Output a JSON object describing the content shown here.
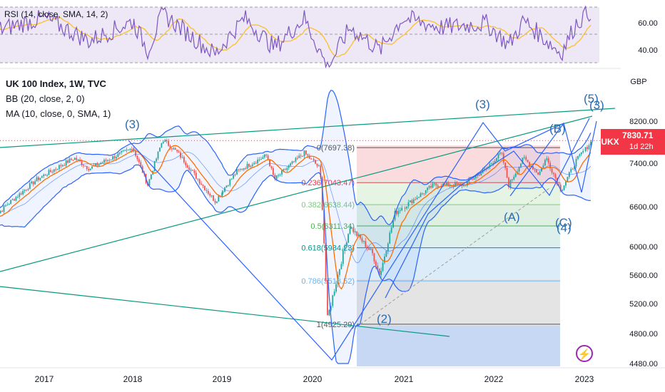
{
  "rsi_pane": {
    "legend": "RSI (14, close, SMA, 14, 2)",
    "levels": [
      "60.00",
      "40.00"
    ]
  },
  "price_pane": {
    "title": "UK 100 Index, 1W, TVC",
    "bb_label": "BB (20, close, 2, 0)",
    "ma_label": "MA (10, close, 0, SMA, 1)",
    "currency": "GBP",
    "y_ticks": [
      "8200.00",
      "7400.00",
      "6600.00",
      "6000.00",
      "5600.00",
      "5200.00",
      "4800.00",
      "4480.00"
    ],
    "x_ticks": [
      "2017",
      "2018",
      "2019",
      "2020",
      "2021",
      "2022",
      "2023"
    ],
    "last_price_badge": {
      "symbol": "UKX",
      "price": "7830.71",
      "time": "1d 22h"
    }
  },
  "fib": {
    "levels": [
      {
        "label": "0(7697.38)",
        "value": 7697.38,
        "color": "#555555"
      },
      {
        "label": "0.236(7043.47)",
        "value": 7043.47,
        "color": "#f23645"
      },
      {
        "label": "0.382(6638.44)",
        "value": 6638.44,
        "color": "#81c784"
      },
      {
        "label": "0.5(6311.34)",
        "value": 6311.34,
        "color": "#4caf50"
      },
      {
        "label": "0.618(5984.23)",
        "value": 5984.23,
        "color": "#009688"
      },
      {
        "label": "0.786(5518.52)",
        "value": 5518.52,
        "color": "#64b5f6"
      },
      {
        "label": "1(4925.29)",
        "value": 4925.29,
        "color": "#555555"
      }
    ]
  },
  "wave_labels": [
    "(3)",
    "(3)",
    "(5)",
    "(3)",
    "(B)",
    "(A)",
    "(C)",
    "(4)",
    "(2)"
  ],
  "colors": {
    "up": "#26a69a",
    "down": "#ef5350",
    "bb": "#2962ff",
    "ma": "#ff6d00",
    "rsi": "#7e57c2",
    "rsi_ma": "#fbc02d",
    "trend_green": "#089981",
    "trend_blue": "#2962ff",
    "wave": "#2b6cb0"
  },
  "chart_data": {
    "type": "candlestick",
    "symbol": "UK 100 Index",
    "interval": "1W",
    "x_range": [
      "2016-06",
      "2023-04"
    ],
    "y_range": [
      4480,
      8500
    ],
    "last_close": 7830.71,
    "swings": [
      {
        "date": "2016-06",
        "price": 6400
      },
      {
        "date": "2016-12",
        "price": 7100
      },
      {
        "date": "2017-05",
        "price": 7500
      },
      {
        "date": "2017-07",
        "price": 7300
      },
      {
        "date": "2018-01",
        "price": 7700
      },
      {
        "date": "2018-03",
        "price": 7000
      },
      {
        "date": "2018-05",
        "price": 7850
      },
      {
        "date": "2018-07",
        "price": 7600
      },
      {
        "date": "2018-10",
        "price": 7050
      },
      {
        "date": "2018-12",
        "price": 6700
      },
      {
        "date": "2019-03",
        "price": 7250
      },
      {
        "date": "2019-07",
        "price": 7550
      },
      {
        "date": "2019-08",
        "price": 7100
      },
      {
        "date": "2019-12",
        "price": 7600
      },
      {
        "date": "2020-02",
        "price": 7300
      },
      {
        "date": "2020-03",
        "price": 5000
      },
      {
        "date": "2020-06",
        "price": 6300
      },
      {
        "date": "2020-09",
        "price": 5900
      },
      {
        "date": "2020-10",
        "price": 5600
      },
      {
        "date": "2020-12",
        "price": 6500
      },
      {
        "date": "2021-05",
        "price": 7000
      },
      {
        "date": "2021-09",
        "price": 7000
      },
      {
        "date": "2021-12",
        "price": 7300
      },
      {
        "date": "2022-02",
        "price": 7600
      },
      {
        "date": "2022-03",
        "price": 7000
      },
      {
        "date": "2022-05",
        "price": 7500
      },
      {
        "date": "2022-07",
        "price": 7200
      },
      {
        "date": "2022-08",
        "price": 7500
      },
      {
        "date": "2022-10",
        "price": 6900
      },
      {
        "date": "2022-12",
        "price": 7450
      },
      {
        "date": "2023-02",
        "price": 7830
      }
    ],
    "rsi_swings": [
      {
        "date": "2016-06",
        "value": 52
      },
      {
        "date": "2017-01",
        "value": 62
      },
      {
        "date": "2017-07",
        "value": 45
      },
      {
        "date": "2018-01",
        "value": 60
      },
      {
        "date": "2018-03",
        "value": 38
      },
      {
        "date": "2018-05",
        "value": 65
      },
      {
        "date": "2018-12",
        "value": 35
      },
      {
        "date": "2019-04",
        "value": 62
      },
      {
        "date": "2019-08",
        "value": 40
      },
      {
        "date": "2019-12",
        "value": 62
      },
      {
        "date": "2020-03",
        "value": 25
      },
      {
        "date": "2020-06",
        "value": 55
      },
      {
        "date": "2020-10",
        "value": 38
      },
      {
        "date": "2021-01",
        "value": 62
      },
      {
        "date": "2021-06",
        "value": 55
      },
      {
        "date": "2021-12",
        "value": 58
      },
      {
        "date": "2022-03",
        "value": 42
      },
      {
        "date": "2022-05",
        "value": 60
      },
      {
        "date": "2022-10",
        "value": 36
      },
      {
        "date": "2022-12",
        "value": 58
      },
      {
        "date": "2023-02",
        "value": 68
      }
    ]
  }
}
